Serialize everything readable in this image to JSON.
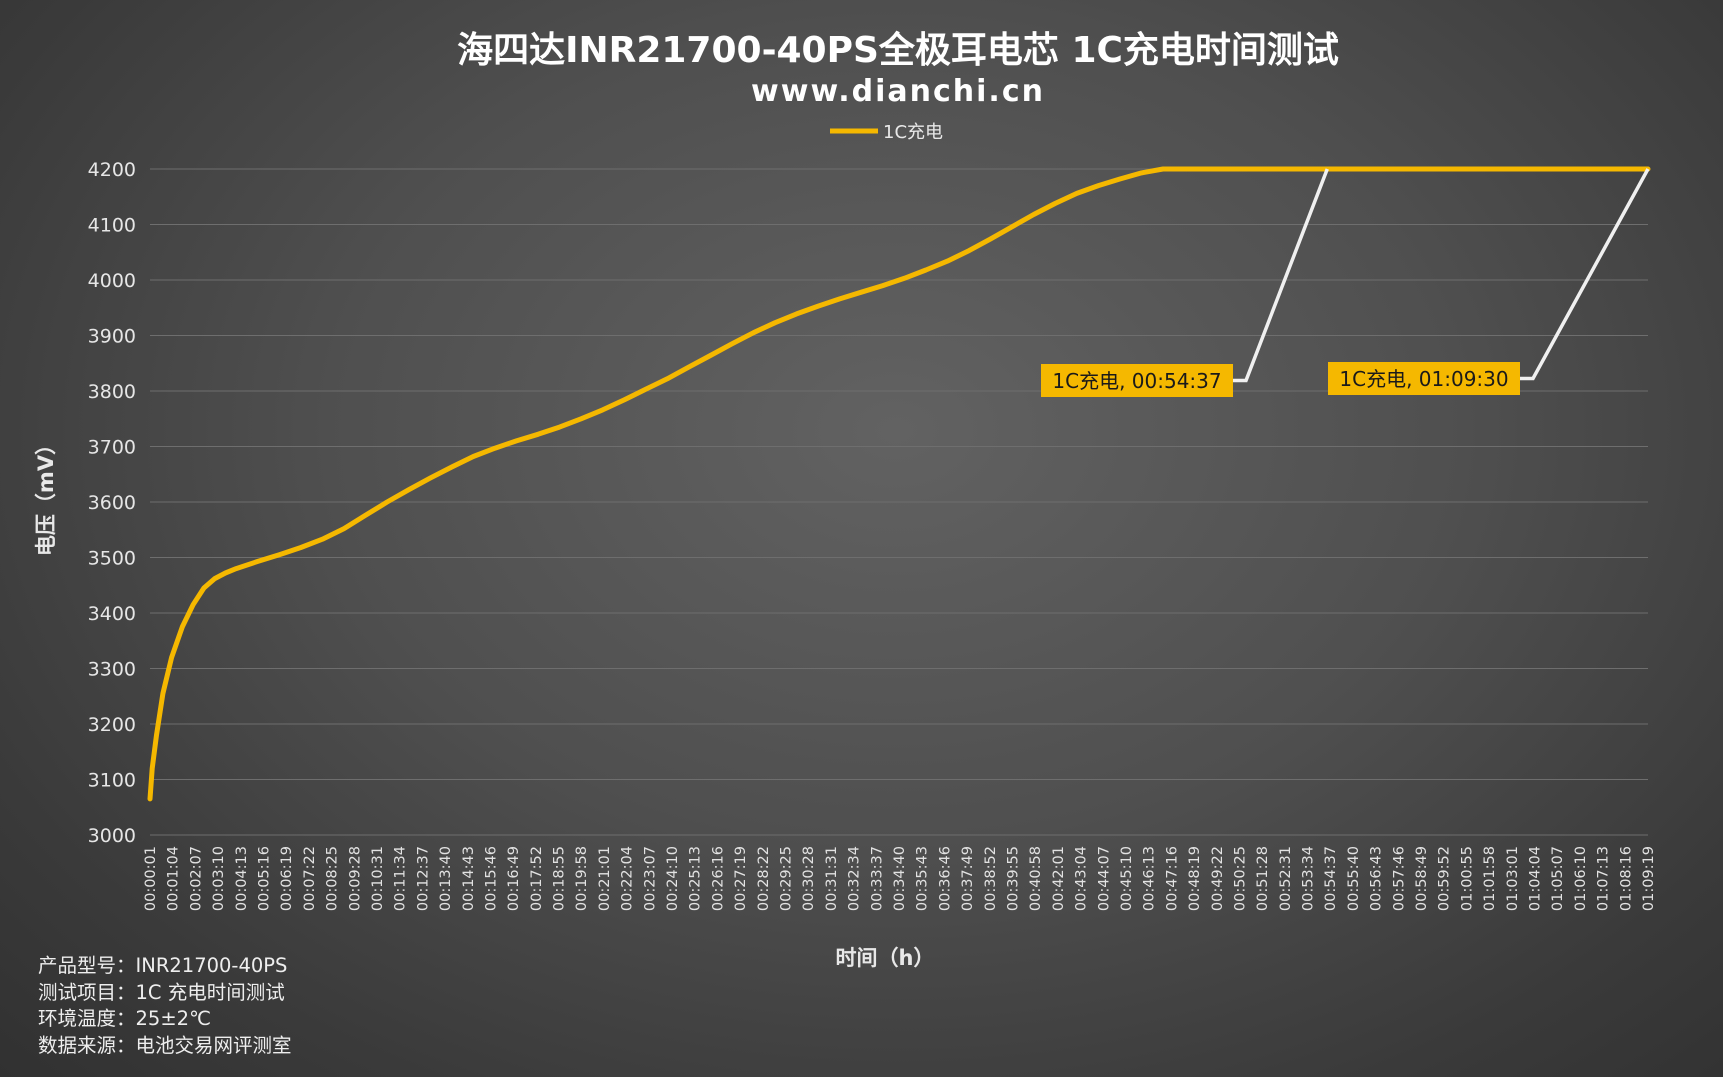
{
  "chart_data": {
    "type": "line",
    "title": "海四达INR21700-40PS全极耳电芯 1C充电时间测试",
    "subtitle": "www.dianchi.cn",
    "xlabel": "时间（h）",
    "ylabel": "电压（mV）",
    "ylim": [
      3000,
      4200
    ],
    "yticks": [
      3000,
      3100,
      3200,
      3300,
      3400,
      3500,
      3600,
      3700,
      3800,
      3900,
      4000,
      4100,
      4200
    ],
    "grid": true,
    "legend_position": "top-center",
    "x_tick_labels": [
      "00:00:01",
      "00:01:04",
      "00:02:07",
      "00:03:10",
      "00:04:13",
      "00:05:16",
      "00:06:19",
      "00:07:22",
      "00:08:25",
      "00:09:28",
      "00:10:31",
      "00:11:34",
      "00:12:37",
      "00:13:40",
      "00:14:43",
      "00:15:46",
      "00:16:49",
      "00:17:52",
      "00:18:55",
      "00:19:58",
      "00:21:01",
      "00:22:04",
      "00:23:07",
      "00:24:10",
      "00:25:13",
      "00:26:16",
      "00:27:19",
      "00:28:22",
      "00:29:25",
      "00:30:28",
      "00:31:31",
      "00:32:34",
      "00:33:37",
      "00:34:40",
      "00:35:43",
      "00:36:46",
      "00:37:49",
      "00:38:52",
      "00:39:55",
      "00:40:58",
      "00:42:01",
      "00:43:04",
      "00:44:07",
      "00:45:10",
      "00:46:13",
      "00:47:16",
      "00:48:19",
      "00:49:22",
      "00:50:25",
      "00:51:28",
      "00:52:31",
      "00:53:34",
      "00:54:37",
      "00:55:40",
      "00:56:43",
      "00:57:46",
      "00:58:49",
      "00:59:52",
      "01:00:55",
      "01:01:58",
      "01:03:01",
      "01:04:04",
      "01:05:07",
      "01:06:10",
      "01:07:13",
      "01:08:16",
      "01:09:19"
    ],
    "series": [
      {
        "name": "1C充电",
        "color": "#f5b800",
        "x_minutes": [
          0,
          0.1,
          0.3,
          0.6,
          1,
          1.5,
          2,
          2.5,
          3,
          3.5,
          4,
          5,
          6,
          7,
          8,
          9,
          10,
          11,
          12,
          13,
          14,
          15,
          16,
          17,
          18,
          19,
          20,
          21,
          22,
          23,
          24,
          25,
          26,
          27,
          28,
          29,
          30,
          31,
          32,
          33,
          34,
          35,
          36,
          37,
          38,
          39,
          40,
          41,
          42,
          43,
          44,
          45,
          46,
          47,
          48,
          49,
          50,
          51,
          52,
          53,
          54,
          54.62,
          56,
          58,
          60,
          62,
          64,
          66,
          68,
          69.5
        ],
        "values": [
          3065,
          3120,
          3180,
          3255,
          3320,
          3375,
          3415,
          3445,
          3462,
          3472,
          3480,
          3493,
          3505,
          3518,
          3533,
          3552,
          3576,
          3600,
          3622,
          3643,
          3663,
          3682,
          3697,
          3710,
          3722,
          3735,
          3750,
          3766,
          3784,
          3803,
          3822,
          3843,
          3864,
          3885,
          3905,
          3923,
          3939,
          3953,
          3966,
          3978,
          3990,
          4003,
          4018,
          4034,
          4053,
          4074,
          4096,
          4118,
          4138,
          4156,
          4170,
          4182,
          4193,
          4200,
          4200,
          4200,
          4200,
          4200,
          4200,
          4200,
          4200,
          4200,
          4200,
          4200,
          4200,
          4200,
          4200,
          4200,
          4200,
          4200
        ]
      }
    ],
    "annotations": [
      {
        "text": "1C充电, 00:54:37",
        "x_minutes": 54.62,
        "y": 4200
      },
      {
        "text": "1C充电, 01:09:30",
        "x_minutes": 69.5,
        "y": 4200
      }
    ]
  },
  "info": [
    {
      "label": "产品型号：",
      "value": "INR21700-40PS"
    },
    {
      "label": "测试项目：",
      "value": "1C 充电时间测试"
    },
    {
      "label": "环境温度：",
      "value": "25±2℃"
    },
    {
      "label": "数据来源：",
      "value": "电池交易网评测室"
    }
  ]
}
